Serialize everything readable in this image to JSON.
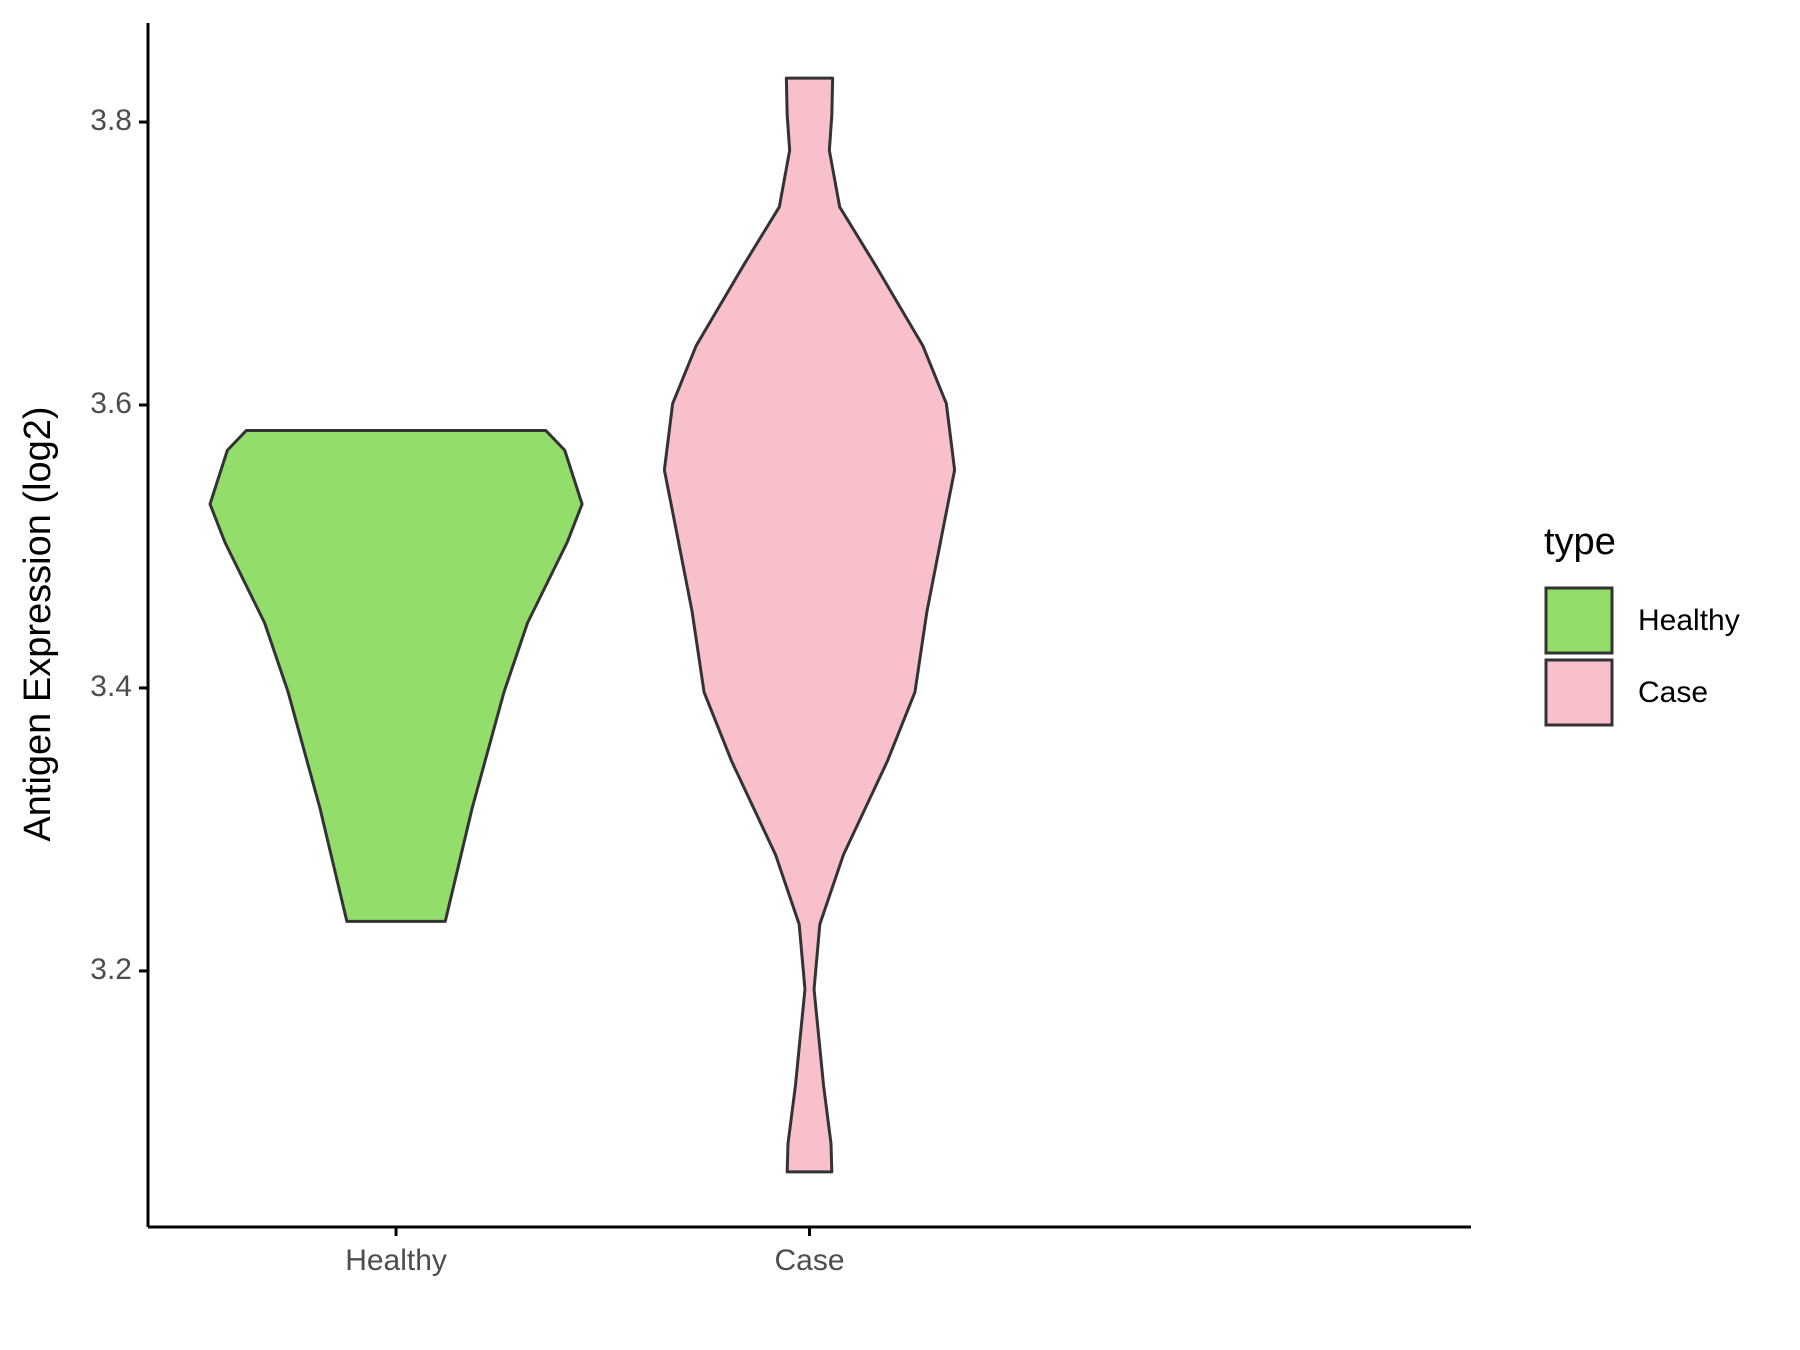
{
  "chart_data": {
    "type": "violin",
    "y_label": "Antigen Expression (log2)",
    "categories": [
      "Healthy",
      "Case"
    ],
    "legend_title": "type",
    "legend_position": "right",
    "ylim": [
      3.019,
      3.87
    ],
    "yticks": [
      3.2,
      3.4,
      3.6,
      3.8
    ],
    "series": [
      {
        "name": "Healthy",
        "color": "#93dd6b",
        "values": [
          3.582,
          3.568,
          3.53,
          3.503,
          3.446,
          3.397,
          3.315,
          3.235
        ],
        "widths": [
          0.362,
          0.408,
          0.45,
          0.414,
          0.318,
          0.261,
          0.184,
          0.119
        ]
      },
      {
        "name": "Case",
        "color": "#f7c0cb",
        "values": [
          3.831,
          3.805,
          3.78,
          3.74,
          3.699,
          3.642,
          3.601,
          3.554,
          3.511,
          3.454,
          3.397,
          3.348,
          3.282,
          3.233,
          3.187,
          3.119,
          3.078,
          3.058
        ],
        "widths": [
          0.056,
          0.054,
          0.048,
          0.073,
          0.159,
          0.274,
          0.331,
          0.351,
          0.322,
          0.284,
          0.255,
          0.188,
          0.082,
          0.025,
          0.011,
          0.034,
          0.052,
          0.054
        ]
      }
    ]
  }
}
